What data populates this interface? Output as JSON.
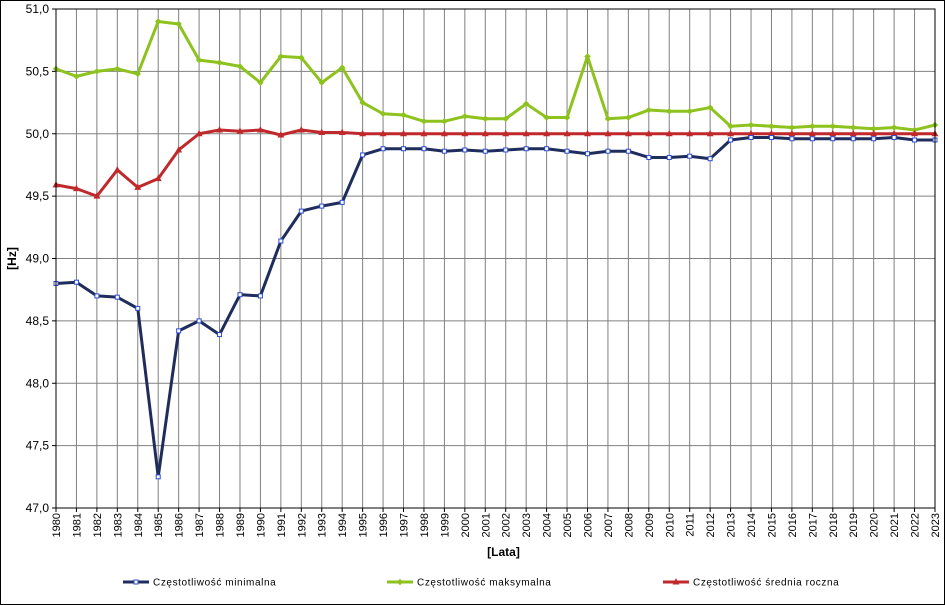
{
  "chart_data": {
    "type": "line",
    "xlabel": "[Lata]",
    "ylabel": "[Hz]",
    "ylim": [
      47.0,
      51.0
    ],
    "yticks": [
      "47,0",
      "47,5",
      "48,0",
      "48,5",
      "49,0",
      "49,5",
      "50,0",
      "50,5",
      "51,0"
    ],
    "grid": true,
    "legend_position": "bottom",
    "categories": [
      "1980",
      "1981",
      "1982",
      "1983",
      "1984",
      "1985",
      "1986",
      "1987",
      "1988",
      "1989",
      "1990",
      "1991",
      "1992",
      "1993",
      "1994",
      "1995",
      "1996",
      "1997",
      "1998",
      "1999",
      "2000",
      "2001",
      "2002",
      "2003",
      "2004",
      "2005",
      "2006",
      "2007",
      "2008",
      "2009",
      "2010",
      "2011",
      "2012",
      "2013",
      "2014",
      "2015",
      "2016",
      "2017",
      "2018",
      "2019",
      "2020",
      "2021",
      "2022",
      "2023"
    ],
    "series": [
      {
        "name": "Częstotliwość  minimalna",
        "color": "#1f2d5c",
        "marker": "square",
        "values": [
          48.8,
          48.81,
          48.7,
          48.69,
          48.6,
          47.25,
          48.42,
          48.5,
          48.39,
          48.71,
          48.7,
          49.14,
          49.38,
          49.42,
          49.45,
          49.83,
          49.88,
          49.88,
          49.88,
          49.86,
          49.87,
          49.86,
          49.87,
          49.88,
          49.88,
          49.86,
          49.84,
          49.86,
          49.86,
          49.81,
          49.81,
          49.82,
          49.8,
          49.95,
          49.97,
          49.97,
          49.96,
          49.96,
          49.96,
          49.96,
          49.96,
          49.97,
          49.95,
          49.95
        ]
      },
      {
        "name": "Częstotliwość  maksymalna",
        "color": "#8dc21f",
        "marker": "diamond",
        "values": [
          50.52,
          50.46,
          50.5,
          50.52,
          50.48,
          50.9,
          50.88,
          50.59,
          50.57,
          50.54,
          50.41,
          50.62,
          50.61,
          50.41,
          50.53,
          50.25,
          50.16,
          50.15,
          50.1,
          50.1,
          50.14,
          50.12,
          50.12,
          50.24,
          50.13,
          50.13,
          50.62,
          50.12,
          50.13,
          50.19,
          50.18,
          50.18,
          50.21,
          50.06,
          50.07,
          50.06,
          50.05,
          50.06,
          50.06,
          50.05,
          50.04,
          50.05,
          50.03,
          50.07
        ]
      },
      {
        "name": "Częstotliwość  średnia roczna",
        "color": "#c0292b",
        "marker": "triangle",
        "values": [
          49.59,
          49.56,
          49.5,
          49.71,
          49.57,
          49.64,
          49.87,
          50.0,
          50.03,
          50.02,
          50.03,
          49.99,
          50.03,
          50.01,
          50.01,
          50.0,
          50.0,
          50.0,
          50.0,
          50.0,
          50.0,
          50.0,
          50.0,
          50.0,
          50.0,
          50.0,
          50.0,
          50.0,
          50.0,
          50.0,
          50.0,
          50.0,
          50.0,
          50.0,
          50.0,
          50.0,
          50.0,
          50.0,
          50.0,
          50.0,
          50.0,
          50.0,
          50.0,
          50.0
        ]
      }
    ]
  }
}
